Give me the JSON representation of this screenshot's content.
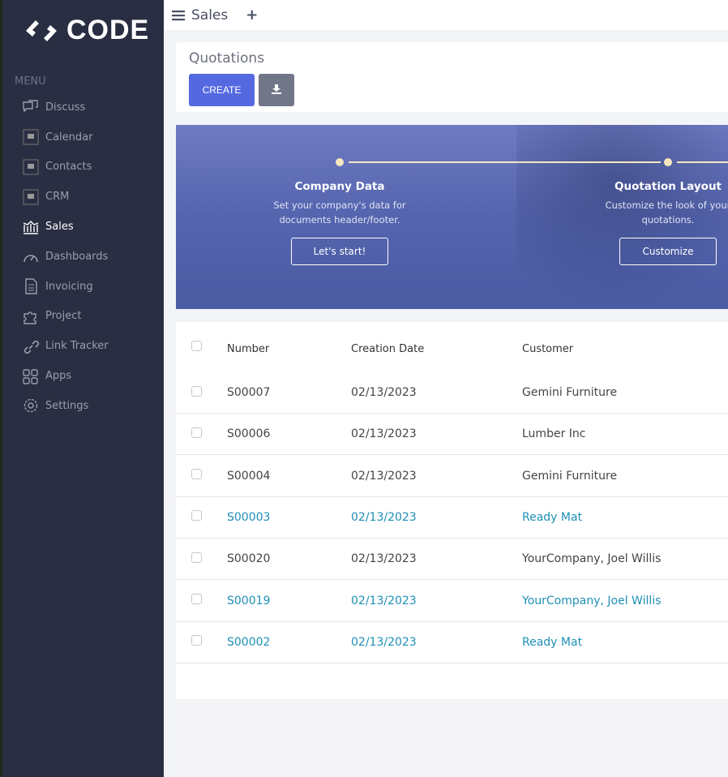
{
  "brand": {
    "name": "CODE"
  },
  "sidebar": {
    "menu_label": "MENU",
    "items": [
      {
        "label": "Discuss",
        "icon": "chat-icon"
      },
      {
        "label": "Calendar",
        "icon": "app-placeholder-icon"
      },
      {
        "label": "Contacts",
        "icon": "app-placeholder-icon"
      },
      {
        "label": "CRM",
        "icon": "app-placeholder-icon"
      },
      {
        "label": "Sales",
        "icon": "bank-chart-icon",
        "active": true
      },
      {
        "label": "Dashboards",
        "icon": "speedometer-icon"
      },
      {
        "label": "Invoicing",
        "icon": "invoice-icon"
      },
      {
        "label": "Project",
        "icon": "puzzle-icon"
      },
      {
        "label": "Link Tracker",
        "icon": "link-icon"
      },
      {
        "label": "Apps",
        "icon": "grid-icon"
      },
      {
        "label": "Settings",
        "icon": "gear-icon"
      }
    ]
  },
  "topbar": {
    "title": "Sales",
    "add": "+"
  },
  "header": {
    "title": "Quotations",
    "create_label": "CREATE"
  },
  "banner": {
    "steps": [
      {
        "title": "Company Data",
        "text1": "Set your company's data for",
        "text2": "documents header/footer.",
        "button": "Let's start!"
      },
      {
        "title": "Quotation Layout",
        "text1": "Customize the look of your",
        "text2": "quotations.",
        "button": "Customize"
      }
    ]
  },
  "table": {
    "columns": [
      "Number",
      "Creation Date",
      "Customer"
    ],
    "rows": [
      {
        "number": "S00007",
        "date": "02/13/2023",
        "customer": "Gemini Furniture",
        "highlight": false
      },
      {
        "number": "S00006",
        "date": "02/13/2023",
        "customer": "Lumber Inc",
        "highlight": false
      },
      {
        "number": "S00004",
        "date": "02/13/2023",
        "customer": "Gemini Furniture",
        "highlight": false
      },
      {
        "number": "S00003",
        "date": "02/13/2023",
        "customer": "Ready Mat",
        "highlight": true
      },
      {
        "number": "S00020",
        "date": "02/13/2023",
        "customer": "YourCompany, Joel Willis",
        "highlight": false
      },
      {
        "number": "S00019",
        "date": "02/13/2023",
        "customer": "YourCompany, Joel Willis",
        "highlight": true
      },
      {
        "number": "S00002",
        "date": "02/13/2023",
        "customer": "Ready Mat",
        "highlight": true
      }
    ]
  },
  "colors": {
    "sidebar": "#2a2e42",
    "primary": "#5469e0",
    "link": "#1f8fb7",
    "banner": "#5564ae"
  }
}
